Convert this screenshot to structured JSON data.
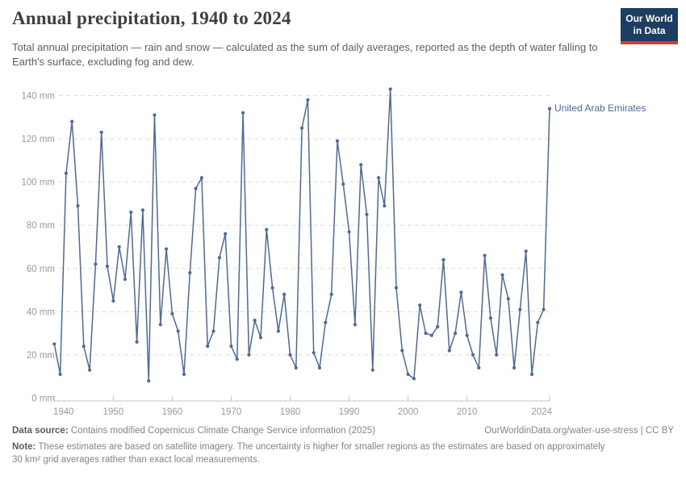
{
  "header": {
    "title": "Annual precipitation, 1940 to 2024",
    "subtitle": "Total annual precipitation — rain and snow — calculated as the sum of daily averages, reported as the depth of water falling to Earth's surface, excluding fog and dew.",
    "logo": {
      "line1": "Our World",
      "line2": "in Data"
    }
  },
  "chart_data": {
    "type": "line",
    "title": "Annual precipitation, 1940 to 2024",
    "series_label": "United Arab Emirates",
    "unit": "mm",
    "ylim": [
      0,
      140
    ],
    "yticks": [
      0,
      20,
      40,
      60,
      80,
      100,
      120,
      140
    ],
    "xticks": [
      1940,
      1950,
      1960,
      1970,
      1980,
      1990,
      2000,
      2010,
      2024
    ],
    "grid": true,
    "line_color": "#4c6a9c",
    "x": [
      1940,
      1941,
      1942,
      1943,
      1944,
      1945,
      1946,
      1947,
      1948,
      1949,
      1950,
      1951,
      1952,
      1953,
      1954,
      1955,
      1956,
      1957,
      1958,
      1959,
      1960,
      1961,
      1962,
      1963,
      1964,
      1965,
      1966,
      1967,
      1968,
      1969,
      1970,
      1971,
      1972,
      1973,
      1974,
      1975,
      1976,
      1977,
      1978,
      1979,
      1980,
      1981,
      1982,
      1983,
      1984,
      1985,
      1986,
      1987,
      1988,
      1989,
      1990,
      1991,
      1992,
      1993,
      1994,
      1995,
      1996,
      1997,
      1998,
      1999,
      2000,
      2001,
      2002,
      2003,
      2004,
      2005,
      2006,
      2007,
      2008,
      2009,
      2010,
      2011,
      2012,
      2013,
      2014,
      2015,
      2016,
      2017,
      2018,
      2019,
      2020,
      2021,
      2022,
      2023,
      2024
    ],
    "values": [
      25,
      11,
      104,
      128,
      89,
      24,
      13,
      62,
      123,
      61,
      45,
      70,
      55,
      86,
      26,
      87,
      8,
      131,
      34,
      69,
      39,
      31,
      11,
      58,
      97,
      102,
      24,
      31,
      65,
      76,
      24,
      18,
      132,
      20,
      36,
      28,
      78,
      51,
      31,
      48,
      20,
      14,
      125,
      138,
      21,
      14,
      35,
      48,
      119,
      99,
      77,
      34,
      108,
      85,
      13,
      102,
      89,
      143,
      51,
      22,
      11,
      9,
      43,
      30,
      29,
      33,
      64,
      22,
      30,
      49,
      29,
      20,
      14,
      66,
      37,
      20,
      57,
      46,
      14,
      41,
      68,
      11,
      35,
      41,
      134
    ]
  },
  "footer": {
    "datasource_label": "Data source:",
    "datasource_text": " Contains modified Copernicus Climate Change Service information (2025)",
    "link_text": "OurWorldinData.org/water-use-stress | CC BY",
    "note_label": "Note:",
    "note_text": " These estimates are based on satellite imagery. The uncertainty is higher for smaller regions as the estimates are based on approximately 30 km² grid averages rather than exact local measurements."
  }
}
